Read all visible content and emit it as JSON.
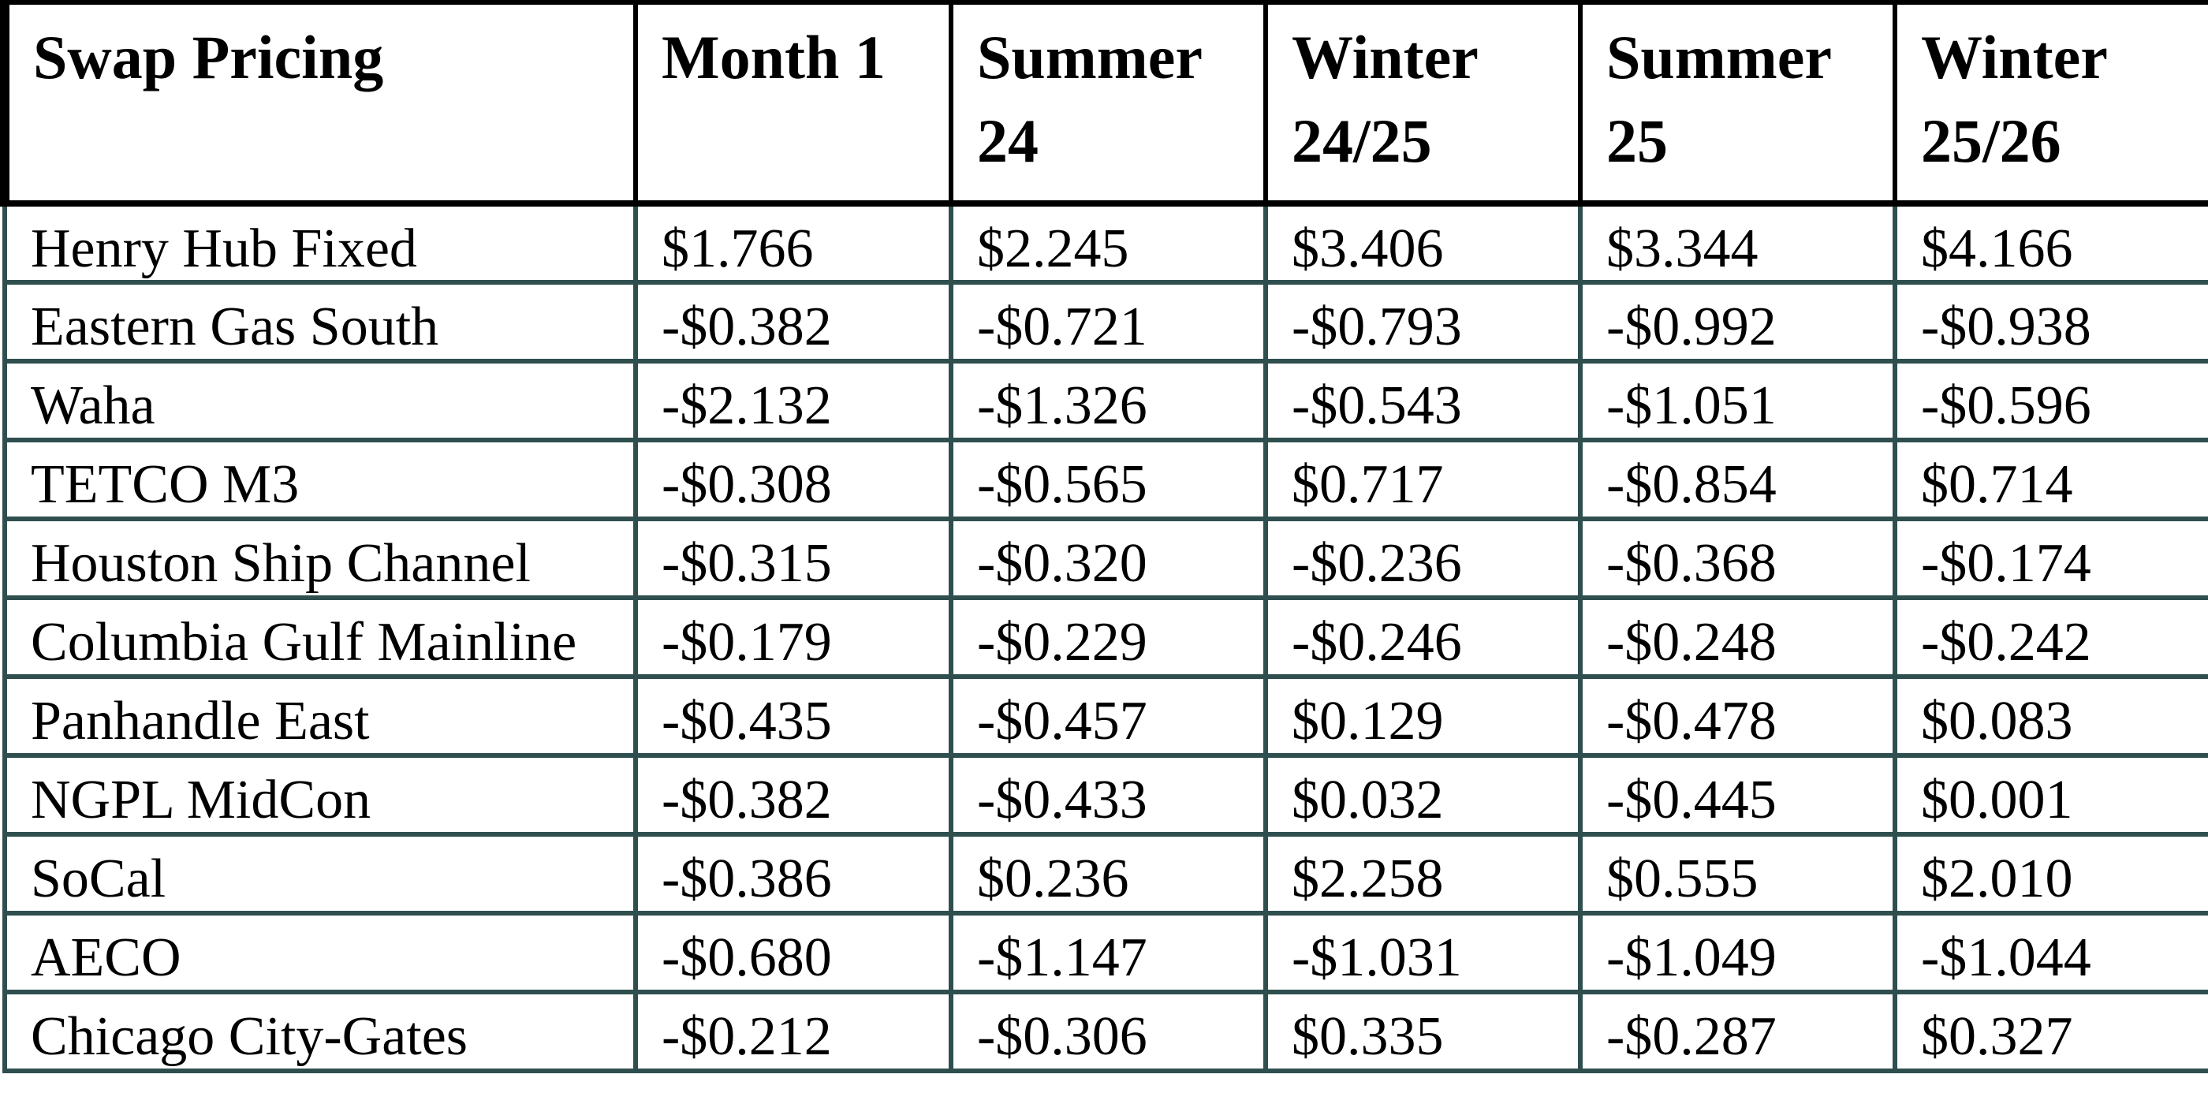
{
  "colors": {
    "background": "#FFFFFF",
    "text": "#000000",
    "header_border": "#000000",
    "grid_border": "#2F4F4F"
  },
  "table": {
    "columns": [
      {
        "line1": "Swap Pricing",
        "line2": ""
      },
      {
        "line1": "Month 1",
        "line2": ""
      },
      {
        "line1": "Summer",
        "line2": "24"
      },
      {
        "line1": "Winter",
        "line2": "24/25"
      },
      {
        "line1": "Summer",
        "line2": "25"
      },
      {
        "line1": "Winter",
        "line2": "25/26"
      }
    ],
    "rows": [
      {
        "label": "Henry Hub Fixed",
        "values": [
          "$1.766",
          "$2.245",
          "$3.406",
          "$3.344",
          "$4.166"
        ]
      },
      {
        "label": "Eastern Gas South",
        "values": [
          "-$0.382",
          "-$0.721",
          "-$0.793",
          "-$0.992",
          "-$0.938"
        ]
      },
      {
        "label": "Waha",
        "values": [
          "-$2.132",
          "-$1.326",
          "-$0.543",
          "-$1.051",
          "-$0.596"
        ]
      },
      {
        "label": "TETCO M3",
        "values": [
          "-$0.308",
          "-$0.565",
          "$0.717",
          "-$0.854",
          "$0.714"
        ]
      },
      {
        "label": "Houston Ship Channel",
        "values": [
          "-$0.315",
          "-$0.320",
          "-$0.236",
          "-$0.368",
          "-$0.174"
        ]
      },
      {
        "label": "Columbia Gulf Mainline",
        "values": [
          "-$0.179",
          "-$0.229",
          "-$0.246",
          "-$0.248",
          "-$0.242"
        ]
      },
      {
        "label": "Panhandle East",
        "values": [
          "-$0.435",
          "-$0.457",
          "$0.129",
          "-$0.478",
          "$0.083"
        ]
      },
      {
        "label": "NGPL MidCon",
        "values": [
          "-$0.382",
          "-$0.433",
          "$0.032",
          "-$0.445",
          "$0.001"
        ]
      },
      {
        "label": "SoCal",
        "values": [
          "-$0.386",
          "$0.236",
          "$2.258",
          "$0.555",
          "$2.010"
        ]
      },
      {
        "label": "AECO",
        "values": [
          "-$0.680",
          "-$1.147",
          "-$1.031",
          "-$1.049",
          "-$1.044"
        ]
      },
      {
        "label": "Chicago City-Gates",
        "values": [
          "-$0.212",
          "-$0.306",
          "$0.335",
          "-$0.287",
          "$0.327"
        ]
      }
    ]
  }
}
